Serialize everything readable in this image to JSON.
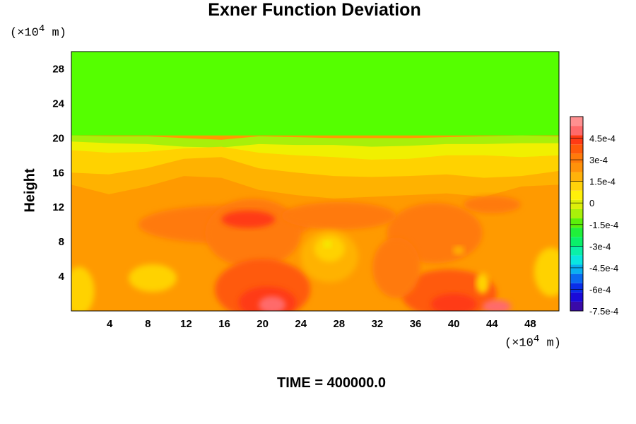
{
  "chart_data": {
    "type": "heatmap",
    "title": "Exner Function Deviation",
    "ylabel": "Height",
    "y_unit_label": {
      "prefix": "(×10",
      "exp": "4",
      "suffix": " m)"
    },
    "x_unit_label": {
      "prefix": "(×10",
      "exp": "4",
      "suffix": " m)"
    },
    "xlim": [
      0,
      51
    ],
    "ylim": [
      0,
      30
    ],
    "x_ticks": [
      "4",
      "8",
      "12",
      "16",
      "20",
      "24",
      "28",
      "32",
      "36",
      "40",
      "44",
      "48"
    ],
    "y_ticks": [
      "4",
      "8",
      "12",
      "16",
      "20",
      "24",
      "28"
    ],
    "colorbar": {
      "range": [
        -0.00075,
        0.0006
      ],
      "tick_labels": [
        "4.5e-4",
        "3e-4",
        "1.5e-4",
        "0",
        "-1.5e-4",
        "-3e-4",
        "-4.5e-4",
        "-6e-4",
        "-7.5e-4"
      ],
      "colors": [
        "#3a0aa8",
        "#1a0ad8",
        "#0a2ee8",
        "#0a6af0",
        "#0ab0f0",
        "#0ae6e0",
        "#0af0a8",
        "#0af06a",
        "#20f03a",
        "#5af00a",
        "#a8f00a",
        "#dcf00a",
        "#fff00a",
        "#ffd20a",
        "#ffb20a",
        "#ff920a",
        "#ff7a0a",
        "#ff5a0a",
        "#ff3a14",
        "#ff6a6a",
        "#ff9090"
      ]
    },
    "field_colors": {
      "upper": "#55ff00",
      "transition": "#a8f00a",
      "layer1": "#f0f000",
      "layer2": "#ffd200",
      "layer3": "#ffb200",
      "base": "#ff9a00",
      "mid": "#ff7a0a",
      "high": "#ff5a0a",
      "peak": "#ff3a14",
      "extreme": "#ff6a6a"
    },
    "time_text": "TIME = 400000.0"
  }
}
